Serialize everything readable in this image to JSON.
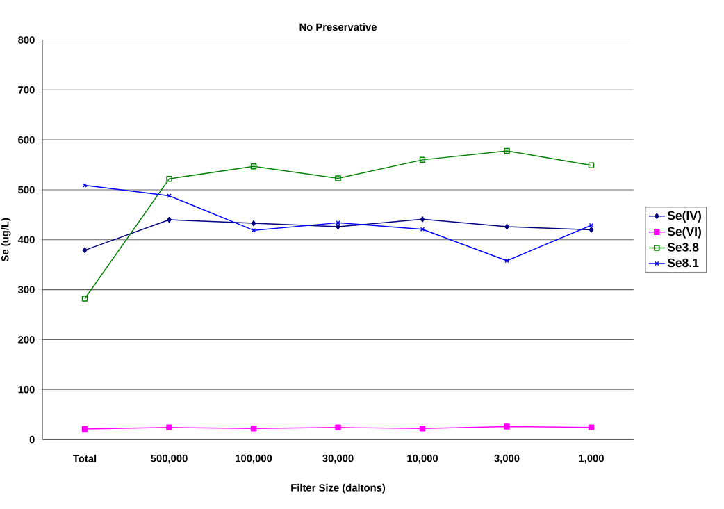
{
  "chart_data": {
    "type": "line",
    "title": "No Preservative",
    "xlabel": "Filter Size (daltons)",
    "ylabel": "Se (ug/L)",
    "categories": [
      "Total",
      "500,000",
      "100,000",
      "30,000",
      "10,000",
      "3,000",
      "1,000"
    ],
    "series": [
      {
        "name": "Se(IV)",
        "color": "#000080",
        "marker": "diamond",
        "values": [
          379,
          440,
          433,
          426,
          441,
          426,
          420
        ]
      },
      {
        "name": "Se(VI)",
        "color": "#ff00ff",
        "marker": "square",
        "values": [
          21,
          24,
          22,
          24,
          22,
          26,
          24
        ]
      },
      {
        "name": "Se3.8",
        "color": "#008000",
        "marker": "square",
        "values": [
          282,
          522,
          547,
          523,
          560,
          578,
          549
        ]
      },
      {
        "name": "Se8.1",
        "color": "#0000ff",
        "marker": "cross",
        "values": [
          509,
          488,
          419,
          434,
          421,
          358,
          429
        ]
      }
    ],
    "ylim": [
      0,
      800
    ],
    "yticks": [
      0,
      100,
      200,
      300,
      400,
      500,
      600,
      700,
      800
    ],
    "grid": "y",
    "legend": "right"
  }
}
